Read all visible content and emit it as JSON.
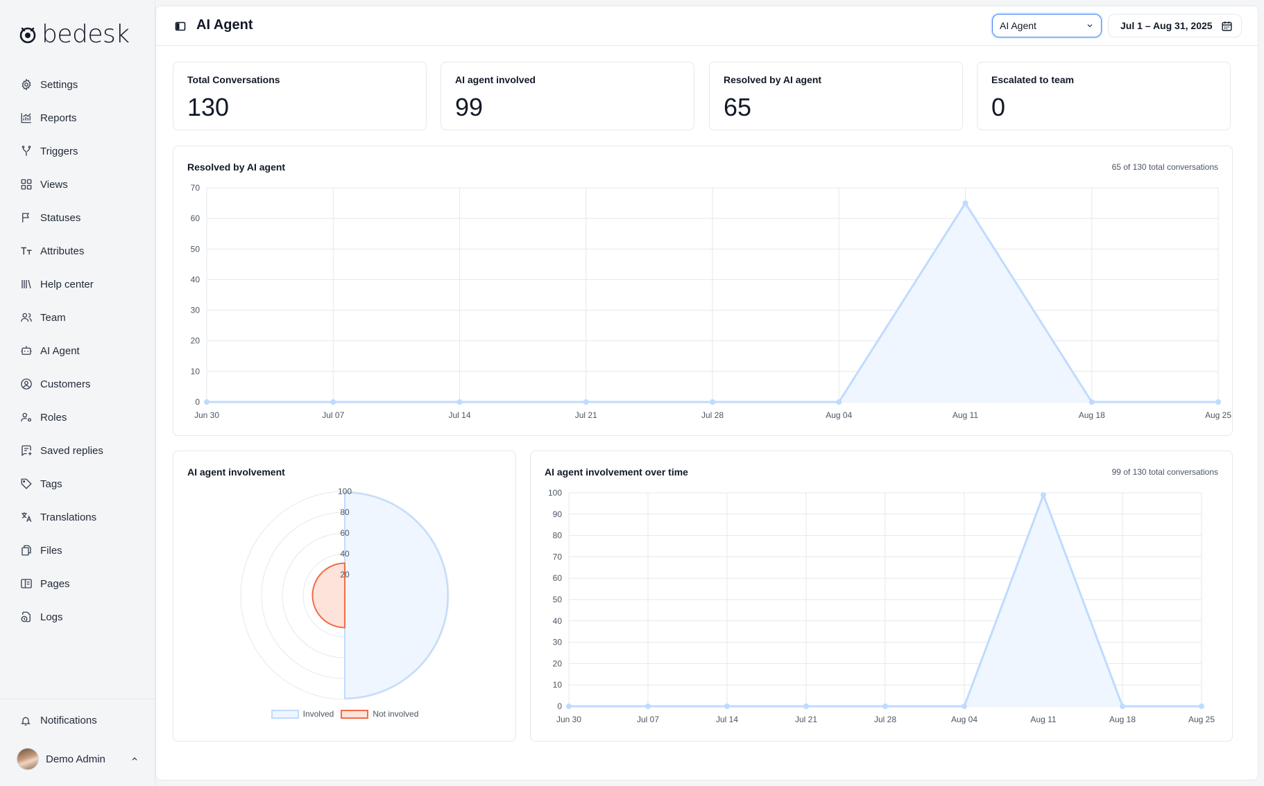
{
  "brand": {
    "name": "bedesk"
  },
  "sidebar": {
    "items": [
      {
        "label": "Settings",
        "icon": "gear-icon"
      },
      {
        "label": "Reports",
        "icon": "reports-icon"
      },
      {
        "label": "Triggers",
        "icon": "triggers-icon"
      },
      {
        "label": "Views",
        "icon": "views-icon"
      },
      {
        "label": "Statuses",
        "icon": "flag-icon"
      },
      {
        "label": "Attributes",
        "icon": "text-size-icon"
      },
      {
        "label": "Help center",
        "icon": "library-icon"
      },
      {
        "label": "Team",
        "icon": "team-icon"
      },
      {
        "label": "AI Agent",
        "icon": "bot-icon"
      },
      {
        "label": "Customers",
        "icon": "user-circle-icon"
      },
      {
        "label": "Roles",
        "icon": "user-cog-icon"
      },
      {
        "label": "Saved replies",
        "icon": "saved-replies-icon"
      },
      {
        "label": "Tags",
        "icon": "tag-icon"
      },
      {
        "label": "Translations",
        "icon": "translate-icon"
      },
      {
        "label": "Files",
        "icon": "files-icon"
      },
      {
        "label": "Pages",
        "icon": "pages-icon"
      },
      {
        "label": "Logs",
        "icon": "logs-icon"
      }
    ],
    "notifications_label": "Notifications",
    "user_name": "Demo Admin"
  },
  "header": {
    "title": "AI Agent",
    "filter_value": "AI Agent",
    "date_range": "Jul 1 – Aug 31, 2025"
  },
  "stats": [
    {
      "label": "Total Conversations",
      "value": "130"
    },
    {
      "label": "AI agent involved",
      "value": "99"
    },
    {
      "label": "Resolved by AI agent",
      "value": "65"
    },
    {
      "label": "Escalated to team",
      "value": "0"
    }
  ],
  "colors": {
    "involved": "#bfdbfe",
    "involved_fill": "#eff6ff",
    "not_involved": "#f26b45",
    "not_involved_fill": "#fde3da"
  },
  "chart_data": [
    {
      "type": "area",
      "title": "Resolved by AI agent",
      "subtitle": "65 of 130 total conversations",
      "categories": [
        "Jun 30",
        "Jul 07",
        "Jul 14",
        "Jul 21",
        "Jul 28",
        "Aug 04",
        "Aug 11",
        "Aug 18",
        "Aug 25"
      ],
      "values": [
        0,
        0,
        0,
        0,
        0,
        0,
        65,
        0,
        0
      ],
      "ylim": [
        0,
        70
      ],
      "yticks": [
        0,
        10,
        20,
        30,
        40,
        50,
        60,
        70
      ],
      "grid": true
    },
    {
      "type": "polar",
      "title": "AI agent involvement",
      "categories": [
        "Involved",
        "Not involved"
      ],
      "values": [
        99,
        31
      ],
      "rlim": [
        0,
        100
      ],
      "rticks": [
        20,
        40,
        60,
        80,
        100
      ],
      "legend": "bottom"
    },
    {
      "type": "area",
      "title": "AI agent involvement over time",
      "subtitle": "99 of 130 total conversations",
      "categories": [
        "Jun 30",
        "Jul 07",
        "Jul 14",
        "Jul 21",
        "Jul 28",
        "Aug 04",
        "Aug 11",
        "Aug 18",
        "Aug 25"
      ],
      "values": [
        0,
        0,
        0,
        0,
        0,
        0,
        99,
        0,
        0
      ],
      "ylim": [
        0,
        100
      ],
      "yticks": [
        0,
        10,
        20,
        30,
        40,
        50,
        60,
        70,
        80,
        90,
        100
      ],
      "grid": true
    }
  ]
}
